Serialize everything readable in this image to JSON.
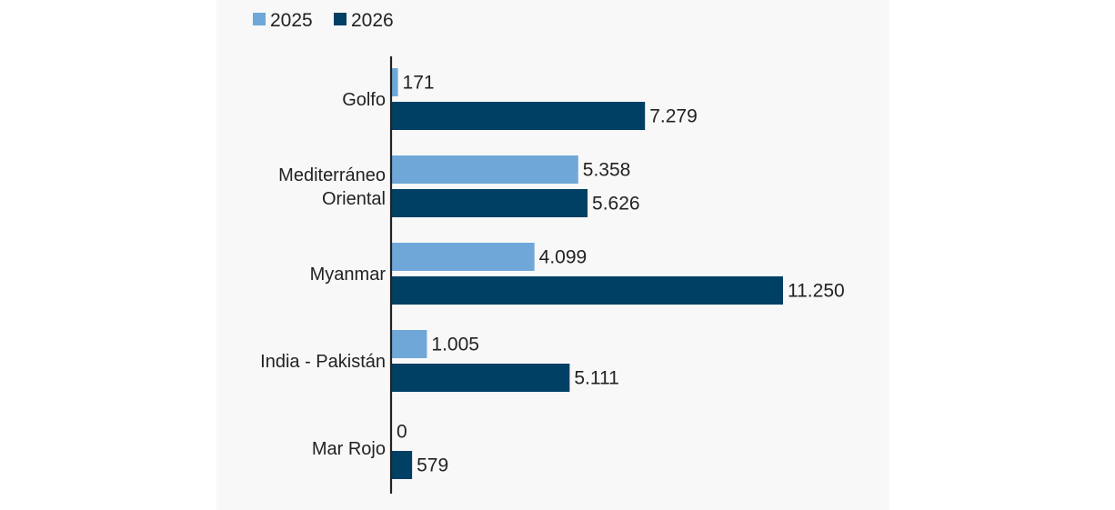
{
  "chart_data": {
    "type": "bar",
    "orientation": "horizontal",
    "categories": [
      [
        "Golfo"
      ],
      [
        "Mediterráneo",
        "Oriental"
      ],
      [
        "Myanmar"
      ],
      [
        "India - Pakistán"
      ],
      [
        "Mar Rojo"
      ]
    ],
    "series": [
      {
        "name": "2025",
        "color": "#6fa8d8",
        "values": [
          171,
          5358,
          4099,
          1005,
          0
        ],
        "labels": [
          "171",
          "5.358",
          "4.099",
          "1.005",
          "0"
        ]
      },
      {
        "name": "2026",
        "color": "#004065",
        "values": [
          7279,
          5626,
          11250,
          5111,
          579
        ],
        "labels": [
          "7.279",
          "5.626",
          "11.250",
          "5.111",
          "579"
        ]
      }
    ],
    "xlim": [
      0,
      11250
    ],
    "grid": false,
    "legend_position": "top-left",
    "background_color": "#f8f8f8",
    "axis_color": "#222222",
    "text_color": "#222222"
  }
}
